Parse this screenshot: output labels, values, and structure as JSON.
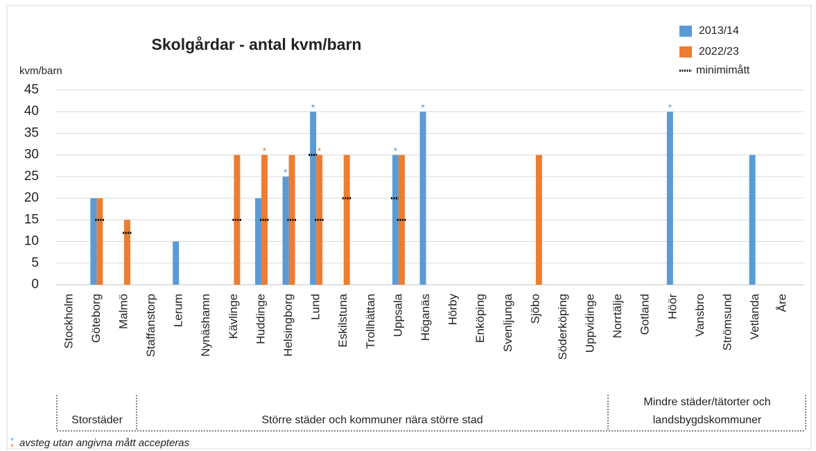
{
  "chart_data": {
    "type": "bar",
    "title": "Skolgårdar - antal kvm/barn",
    "y_label": "kvm/barn",
    "categories": [
      "Stockholm",
      "Göteborg",
      "Malmö",
      "Staffanstorp",
      "Lerum",
      "Nynäshamn",
      "Kävlinge",
      "Huddinge",
      "Helsingborg",
      "Lund",
      "Eskilstuna",
      "Trollhättan",
      "Uppsala",
      "Höganäs",
      "Hörby",
      "Enköping",
      "Svenljunga",
      "Sjöbo",
      "Söderköping",
      "Uppvidinge",
      "Norrtälje",
      "Gotland",
      "Höör",
      "Vansbro",
      "Strömsund",
      "Vetlanda",
      "Åre"
    ],
    "series": [
      {
        "name": "2013/14",
        "color": "#5b9bd5",
        "values": [
          0,
          20,
          0,
          0,
          10,
          0,
          0,
          20,
          25,
          40,
          0,
          0,
          30,
          40,
          0,
          0,
          0,
          0,
          0,
          0,
          0,
          0,
          40,
          0,
          0,
          30,
          0
        ],
        "minimum": [
          null,
          null,
          null,
          null,
          null,
          null,
          null,
          null,
          null,
          30,
          null,
          null,
          20,
          null,
          null,
          null,
          null,
          null,
          null,
          null,
          null,
          null,
          null,
          null,
          null,
          null,
          null
        ],
        "flagged": [
          false,
          false,
          false,
          false,
          false,
          false,
          false,
          false,
          true,
          true,
          false,
          false,
          true,
          true,
          false,
          false,
          false,
          false,
          false,
          false,
          false,
          false,
          true,
          false,
          false,
          false,
          false
        ]
      },
      {
        "name": "2022/23",
        "color": "#ed7d31",
        "values": [
          0,
          20,
          15,
          0,
          0,
          0,
          30,
          30,
          30,
          30,
          30,
          0,
          30,
          0,
          0,
          0,
          0,
          30,
          0,
          0,
          0,
          0,
          0,
          0,
          0,
          0,
          0
        ],
        "minimum": [
          null,
          15,
          12,
          null,
          null,
          null,
          15,
          15,
          15,
          15,
          20,
          null,
          15,
          null,
          null,
          null,
          null,
          null,
          null,
          null,
          null,
          null,
          null,
          null,
          null,
          null,
          null
        ],
        "flagged": [
          false,
          false,
          false,
          false,
          false,
          false,
          false,
          true,
          false,
          true,
          false,
          false,
          false,
          false,
          false,
          false,
          false,
          false,
          false,
          false,
          false,
          false,
          false,
          false,
          false,
          false,
          false
        ]
      }
    ],
    "minimum_name": "minimimått",
    "flag_symbol": "*",
    "footnote": "avsteg utan angivna mått accepteras",
    "groups": [
      [
        "Storstäder"
      ],
      [
        "Större städer och kommuner nära större stad"
      ],
      [
        "Mindre städer/tätorter och",
        "landsbygdskommuner"
      ]
    ],
    "ylim": [
      0,
      45
    ],
    "yticks": [
      0,
      5,
      10,
      15,
      20,
      25,
      30,
      35,
      40,
      45
    ],
    "grid": true
  }
}
